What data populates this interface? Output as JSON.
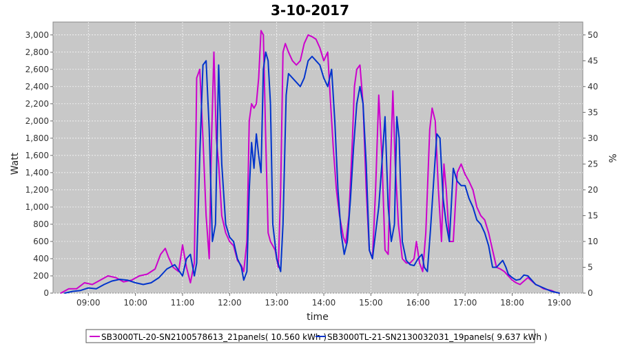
{
  "chart_data": {
    "type": "line",
    "title": "3-10-2017",
    "xlabel": "time",
    "ylabel": "Watt",
    "y2label": "%",
    "ylim": [
      0,
      3150
    ],
    "y2lim": [
      0,
      52.5
    ],
    "xlim": [
      "08:15",
      "19:30"
    ],
    "x_ticks": [
      "09:00",
      "10:00",
      "11:00",
      "12:00",
      "13:00",
      "14:00",
      "15:00",
      "16:00",
      "17:00",
      "18:00",
      "19:00"
    ],
    "y_ticks": [
      "0",
      "200",
      "400",
      "600",
      "800",
      "1,000",
      "1,200",
      "1,400",
      "1,600",
      "1,800",
      "2,000",
      "2,200",
      "2,400",
      "2,600",
      "2,800",
      "3,000"
    ],
    "y2_ticks": [
      "0",
      "5",
      "10",
      "15",
      "20",
      "25",
      "30",
      "35",
      "40",
      "45",
      "50"
    ],
    "grid": true,
    "background": "#c8c8c8",
    "legend_position": "bottom",
    "series": [
      {
        "name": "SB3000TL-20-SN2100578613_21panels( 10.560 kWh )",
        "color": "#cc00cc",
        "points": [
          [
            "08:25",
            0
          ],
          [
            "08:35",
            50
          ],
          [
            "08:45",
            50
          ],
          [
            "08:55",
            120
          ],
          [
            "09:05",
            100
          ],
          [
            "09:15",
            150
          ],
          [
            "09:25",
            200
          ],
          [
            "09:35",
            180
          ],
          [
            "09:45",
            130
          ],
          [
            "09:55",
            150
          ],
          [
            "10:05",
            200
          ],
          [
            "10:15",
            220
          ],
          [
            "10:25",
            280
          ],
          [
            "10:32",
            450
          ],
          [
            "10:38",
            520
          ],
          [
            "10:42",
            420
          ],
          [
            "10:48",
            300
          ],
          [
            "10:55",
            250
          ],
          [
            "11:00",
            560
          ],
          [
            "11:05",
            300
          ],
          [
            "11:10",
            120
          ],
          [
            "11:15",
            350
          ],
          [
            "11:18",
            2500
          ],
          [
            "11:22",
            2600
          ],
          [
            "11:26",
            1800
          ],
          [
            "11:30",
            900
          ],
          [
            "11:34",
            400
          ],
          [
            "11:37",
            1800
          ],
          [
            "11:40",
            2800
          ],
          [
            "11:43",
            1800
          ],
          [
            "11:46",
            1500
          ],
          [
            "11:50",
            900
          ],
          [
            "11:55",
            700
          ],
          [
            "12:00",
            600
          ],
          [
            "12:05",
            550
          ],
          [
            "12:10",
            380
          ],
          [
            "12:15",
            320
          ],
          [
            "12:18",
            250
          ],
          [
            "12:22",
            600
          ],
          [
            "12:25",
            2000
          ],
          [
            "12:28",
            2200
          ],
          [
            "12:31",
            2150
          ],
          [
            "12:34",
            2200
          ],
          [
            "12:37",
            2500
          ],
          [
            "12:40",
            3050
          ],
          [
            "12:43",
            3000
          ],
          [
            "12:46",
            1800
          ],
          [
            "12:49",
            700
          ],
          [
            "12:52",
            600
          ],
          [
            "12:55",
            550
          ],
          [
            "12:58",
            500
          ],
          [
            "13:02",
            300
          ],
          [
            "13:05",
            1200
          ],
          [
            "13:08",
            2800
          ],
          [
            "13:11",
            2900
          ],
          [
            "13:15",
            2800
          ],
          [
            "13:20",
            2700
          ],
          [
            "13:25",
            2650
          ],
          [
            "13:30",
            2700
          ],
          [
            "13:35",
            2900
          ],
          [
            "13:40",
            3000
          ],
          [
            "13:45",
            2980
          ],
          [
            "13:50",
            2950
          ],
          [
            "13:55",
            2850
          ],
          [
            "14:00",
            2700
          ],
          [
            "14:05",
            2800
          ],
          [
            "14:08",
            2300
          ],
          [
            "14:12",
            1700
          ],
          [
            "14:16",
            1200
          ],
          [
            "14:20",
            900
          ],
          [
            "14:25",
            650
          ],
          [
            "14:28",
            580
          ],
          [
            "14:32",
            900
          ],
          [
            "14:36",
            1700
          ],
          [
            "14:39",
            2400
          ],
          [
            "14:42",
            2600
          ],
          [
            "14:46",
            2650
          ],
          [
            "14:50",
            2200
          ],
          [
            "14:54",
            1200
          ],
          [
            "14:58",
            500
          ],
          [
            "15:02",
            400
          ],
          [
            "15:06",
            1200
          ],
          [
            "15:10",
            2300
          ],
          [
            "15:14",
            1600
          ],
          [
            "15:18",
            500
          ],
          [
            "15:22",
            450
          ],
          [
            "15:25",
            1500
          ],
          [
            "15:28",
            2350
          ],
          [
            "15:31",
            1500
          ],
          [
            "15:35",
            800
          ],
          [
            "15:40",
            400
          ],
          [
            "15:45",
            350
          ],
          [
            "15:50",
            350
          ],
          [
            "15:55",
            400
          ],
          [
            "15:58",
            600
          ],
          [
            "16:02",
            350
          ],
          [
            "16:06",
            250
          ],
          [
            "16:10",
            700
          ],
          [
            "16:15",
            1900
          ],
          [
            "16:18",
            2150
          ],
          [
            "16:22",
            2000
          ],
          [
            "16:26",
            1200
          ],
          [
            "16:30",
            600
          ],
          [
            "16:33",
            1500
          ],
          [
            "16:36",
            1200
          ],
          [
            "16:40",
            600
          ],
          [
            "16:45",
            600
          ],
          [
            "16:50",
            1400
          ],
          [
            "16:55",
            1500
          ],
          [
            "17:00",
            1380
          ],
          [
            "17:05",
            1300
          ],
          [
            "17:10",
            1200
          ],
          [
            "17:15",
            1000
          ],
          [
            "17:20",
            900
          ],
          [
            "17:25",
            850
          ],
          [
            "17:30",
            700
          ],
          [
            "17:35",
            500
          ],
          [
            "17:40",
            300
          ],
          [
            "17:45",
            280
          ],
          [
            "17:50",
            250
          ],
          [
            "17:55",
            200
          ],
          [
            "18:00",
            150
          ],
          [
            "18:05",
            120
          ],
          [
            "18:10",
            100
          ],
          [
            "18:15",
            140
          ],
          [
            "18:20",
            180
          ],
          [
            "18:25",
            140
          ],
          [
            "18:30",
            100
          ],
          [
            "18:35",
            80
          ],
          [
            "18:40",
            50
          ],
          [
            "18:45",
            40
          ],
          [
            "18:50",
            30
          ],
          [
            "18:55",
            10
          ],
          [
            "19:00",
            0
          ]
        ]
      },
      {
        "name": "SB3000TL-21-SN2130032031_19panels( 9.637 kWh )",
        "color": "#0033cc",
        "points": [
          [
            "08:30",
            0
          ],
          [
            "08:40",
            20
          ],
          [
            "08:50",
            30
          ],
          [
            "09:00",
            60
          ],
          [
            "09:10",
            50
          ],
          [
            "09:20",
            100
          ],
          [
            "09:30",
            140
          ],
          [
            "09:40",
            160
          ],
          [
            "09:50",
            150
          ],
          [
            "10:00",
            120
          ],
          [
            "10:10",
            100
          ],
          [
            "10:20",
            120
          ],
          [
            "10:30",
            180
          ],
          [
            "10:40",
            280
          ],
          [
            "10:50",
            330
          ],
          [
            "11:00",
            200
          ],
          [
            "11:05",
            400
          ],
          [
            "11:10",
            450
          ],
          [
            "11:15",
            200
          ],
          [
            "11:18",
            350
          ],
          [
            "11:22",
            1600
          ],
          [
            "11:26",
            2650
          ],
          [
            "11:30",
            2700
          ],
          [
            "11:34",
            1900
          ],
          [
            "11:38",
            600
          ],
          [
            "11:42",
            800
          ],
          [
            "11:46",
            2650
          ],
          [
            "11:50",
            1500
          ],
          [
            "11:55",
            800
          ],
          [
            "12:00",
            650
          ],
          [
            "12:05",
            600
          ],
          [
            "12:10",
            400
          ],
          [
            "12:15",
            300
          ],
          [
            "12:18",
            150
          ],
          [
            "12:22",
            250
          ],
          [
            "12:25",
            1200
          ],
          [
            "12:28",
            1750
          ],
          [
            "12:31",
            1450
          ],
          [
            "12:34",
            1850
          ],
          [
            "12:37",
            1600
          ],
          [
            "12:40",
            1400
          ],
          [
            "12:43",
            2600
          ],
          [
            "12:46",
            2800
          ],
          [
            "12:49",
            2700
          ],
          [
            "12:52",
            2200
          ],
          [
            "12:55",
            800
          ],
          [
            "13:00",
            400
          ],
          [
            "13:05",
            250
          ],
          [
            "13:08",
            800
          ],
          [
            "13:12",
            2300
          ],
          [
            "13:15",
            2550
          ],
          [
            "13:20",
            2500
          ],
          [
            "13:25",
            2450
          ],
          [
            "13:30",
            2400
          ],
          [
            "13:35",
            2500
          ],
          [
            "13:40",
            2700
          ],
          [
            "13:45",
            2750
          ],
          [
            "13:50",
            2700
          ],
          [
            "13:55",
            2650
          ],
          [
            "14:00",
            2500
          ],
          [
            "14:05",
            2400
          ],
          [
            "14:10",
            2600
          ],
          [
            "14:14",
            2000
          ],
          [
            "14:18",
            1200
          ],
          [
            "14:22",
            700
          ],
          [
            "14:26",
            450
          ],
          [
            "14:30",
            600
          ],
          [
            "14:34",
            1100
          ],
          [
            "14:38",
            1700
          ],
          [
            "14:42",
            2200
          ],
          [
            "14:46",
            2400
          ],
          [
            "14:50",
            2200
          ],
          [
            "14:54",
            1500
          ],
          [
            "14:58",
            500
          ],
          [
            "15:02",
            400
          ],
          [
            "15:06",
            700
          ],
          [
            "15:10",
            1000
          ],
          [
            "15:14",
            1500
          ],
          [
            "15:18",
            2050
          ],
          [
            "15:22",
            1000
          ],
          [
            "15:26",
            600
          ],
          [
            "15:30",
            800
          ],
          [
            "15:33",
            2050
          ],
          [
            "15:36",
            1800
          ],
          [
            "15:40",
            600
          ],
          [
            "15:45",
            380
          ],
          [
            "15:50",
            330
          ],
          [
            "15:55",
            320
          ],
          [
            "16:00",
            400
          ],
          [
            "16:05",
            450
          ],
          [
            "16:08",
            300
          ],
          [
            "16:12",
            250
          ],
          [
            "16:16",
            750
          ],
          [
            "16:20",
            1300
          ],
          [
            "16:24",
            1850
          ],
          [
            "16:28",
            1800
          ],
          [
            "16:32",
            1100
          ],
          [
            "16:36",
            800
          ],
          [
            "16:40",
            600
          ],
          [
            "16:45",
            1450
          ],
          [
            "16:50",
            1300
          ],
          [
            "16:55",
            1250
          ],
          [
            "17:00",
            1250
          ],
          [
            "17:05",
            1100
          ],
          [
            "17:10",
            1000
          ],
          [
            "17:15",
            850
          ],
          [
            "17:20",
            800
          ],
          [
            "17:25",
            700
          ],
          [
            "17:30",
            550
          ],
          [
            "17:35",
            300
          ],
          [
            "17:40",
            300
          ],
          [
            "17:45",
            350
          ],
          [
            "17:48",
            380
          ],
          [
            "17:52",
            300
          ],
          [
            "17:55",
            220
          ],
          [
            "18:00",
            180
          ],
          [
            "18:05",
            150
          ],
          [
            "18:10",
            160
          ],
          [
            "18:15",
            210
          ],
          [
            "18:20",
            200
          ],
          [
            "18:25",
            150
          ],
          [
            "18:30",
            100
          ],
          [
            "18:35",
            80
          ],
          [
            "18:40",
            60
          ],
          [
            "18:45",
            40
          ],
          [
            "18:50",
            20
          ],
          [
            "18:55",
            10
          ],
          [
            "19:00",
            0
          ]
        ]
      }
    ]
  }
}
